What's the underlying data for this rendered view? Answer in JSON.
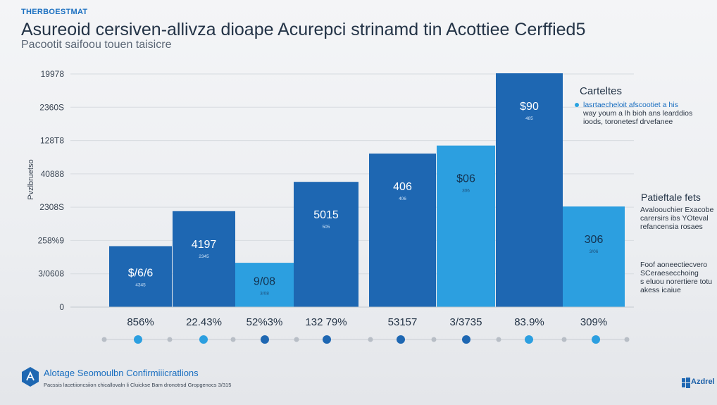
{
  "header": {
    "kicker": "THERBOESTMAT",
    "title": "Asureoid cersiven-allivza dioape Acurepci strinamd tin  Acottiee Cerffied5",
    "subtitle": "Pacootit saifoou touen taisicre"
  },
  "legend": {
    "title": "Carteltes",
    "lines": [
      "lasrtaecheloit afscootiet a his",
      "way youm a lh bioh ans learddios",
      "ioods, toronetesf drvefanee"
    ]
  },
  "notes": {
    "note1_title": "Patieftale fets",
    "note1_lines": [
      "Avaloouchier Exacobe",
      "carersirs ibs YOteval",
      "refancensia rosaes"
    ],
    "note2_lines": [
      "Foof aoneectiecvero",
      "SCeraesecchoing",
      "s eluou norertiere totu",
      "akess icaiue"
    ]
  },
  "footer": {
    "title": "Alotage Seomoulbn Confirmiiicratlions",
    "text": "Pacssis lacetiioncsiion chicallovaln li Cluickse Bam dronotrsd Gropgenocs 3/315",
    "brand": "Azdrel"
  },
  "colors": {
    "dark": "#1e67b2",
    "light": "#2c9fe0",
    "accent": "#1a6fc0"
  },
  "chart_data": {
    "type": "bar",
    "title": "Asureoid cersiven-allivza dioape Acurepci strinamd tin  Acottiee Cerffied5",
    "subtitle": "Pacootit saifoou touen taisicre",
    "ylabel": "Pvzlbruetso",
    "ytick_labels": [
      "0",
      "3/0608",
      "258%9",
      "2308S",
      "40888",
      "128T8",
      "2360S",
      "19978"
    ],
    "ylim": [
      0,
      7
    ],
    "bars": [
      {
        "label": "$/6/6",
        "sub": "4345",
        "category": "856%",
        "value": 1.83,
        "tone": "dark",
        "dot": "light"
      },
      {
        "label": "4197",
        "sub": "2345",
        "category": "22.43%",
        "value": 2.88,
        "tone": "dark",
        "dot": "light"
      },
      {
        "label": "9/08",
        "sub": "3/08",
        "category": "52%3%",
        "value": 1.33,
        "tone": "light",
        "dot": "dark"
      },
      {
        "label": "5015",
        "sub": "505",
        "category": "132 79%",
        "value": 3.76,
        "tone": "dark",
        "dot": "dark"
      },
      {
        "label": "406",
        "sub": "406",
        "category": "53157",
        "value": 4.61,
        "tone": "dark",
        "dot": "dark"
      },
      {
        "label": "$06",
        "sub": "306",
        "category": "3/3735",
        "value": 4.85,
        "tone": "light",
        "dot": "dark"
      },
      {
        "label": "$90",
        "sub": "485",
        "category": "83.9%",
        "value": 7.02,
        "tone": "dark",
        "dot": "light"
      },
      {
        "label": "306",
        "sub": "3/06",
        "category": "309%",
        "value": 3.02,
        "tone": "light",
        "dot": "light"
      }
    ]
  }
}
